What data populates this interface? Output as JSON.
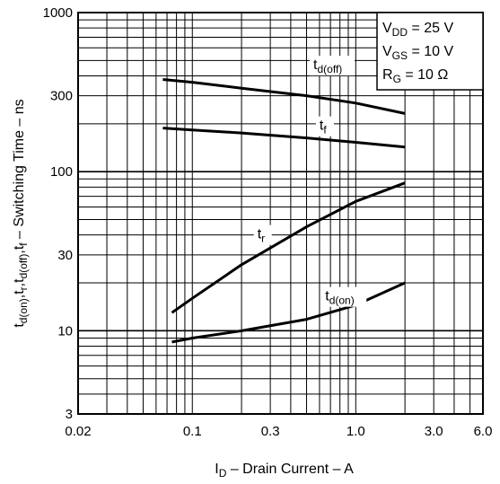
{
  "chart_data": {
    "type": "line",
    "title": "",
    "xlabel": {
      "main": "I",
      "sub": "D",
      "rest": " – Drain Current – A"
    },
    "ylabel": {
      "parts": [
        {
          "t": "t",
          "s": "d(on)"
        },
        {
          "t": ",t",
          "s": "r"
        },
        {
          "t": ",t",
          "s": "d(off)"
        },
        {
          "t": ",t",
          "s": "f"
        },
        {
          "t": " – Switching Time – ns",
          "s": ""
        }
      ]
    },
    "x_scale": "log",
    "y_scale": "log",
    "xlim": [
      0.02,
      6.0
    ],
    "ylim": [
      3,
      1000
    ],
    "grid": true,
    "x_ticks": [
      {
        "value": 0.02,
        "label": "0.02"
      },
      {
        "value": 0.1,
        "label": "0.1"
      },
      {
        "value": 0.3,
        "label": "0.3"
      },
      {
        "value": 1.0,
        "label": "1.0"
      },
      {
        "value": 3.0,
        "label": "3.0"
      },
      {
        "value": 6.0,
        "label": "6.0"
      }
    ],
    "y_ticks": [
      {
        "value": 3,
        "label": "3"
      },
      {
        "value": 10,
        "label": "10"
      },
      {
        "value": 30,
        "label": "30"
      },
      {
        "value": 100,
        "label": "100"
      },
      {
        "value": 300,
        "label": "300"
      },
      {
        "value": 1000,
        "label": "1000"
      }
    ],
    "conditions": [
      {
        "main": "V",
        "sub": "DD",
        "rest": " = 25 V"
      },
      {
        "main": "V",
        "sub": "GS",
        "rest": " = 10 V"
      },
      {
        "main": "R",
        "sub": "G",
        "rest": " = 10 Ω"
      }
    ],
    "series": [
      {
        "name": {
          "main": "t",
          "sub": "d(off)"
        },
        "label_at": [
          0.55,
          440
        ],
        "x": [
          0.066,
          0.1,
          0.2,
          0.5,
          1.0,
          2.0
        ],
        "y": [
          380,
          365,
          335,
          300,
          270,
          232
        ]
      },
      {
        "name": {
          "main": "t",
          "sub": "f"
        },
        "label_at": [
          0.6,
          183
        ],
        "x": [
          0.066,
          0.1,
          0.2,
          0.5,
          1.0,
          2.0
        ],
        "y": [
          188,
          183,
          175,
          163,
          153,
          143
        ]
      },
      {
        "name": {
          "main": "t",
          "sub": "r"
        },
        "label_at": [
          0.25,
          38
        ],
        "x": [
          0.075,
          0.1,
          0.2,
          0.5,
          1.0,
          2.0
        ],
        "y": [
          13,
          16,
          26,
          45,
          65,
          85
        ]
      },
      {
        "name": {
          "main": "t",
          "sub": "d(on)"
        },
        "label_at": [
          0.65,
          15.5
        ],
        "x": [
          0.075,
          0.1,
          0.2,
          0.5,
          1.0,
          2.0
        ],
        "y": [
          8.5,
          9.0,
          10.0,
          11.8,
          14.5,
          20
        ]
      }
    ]
  }
}
